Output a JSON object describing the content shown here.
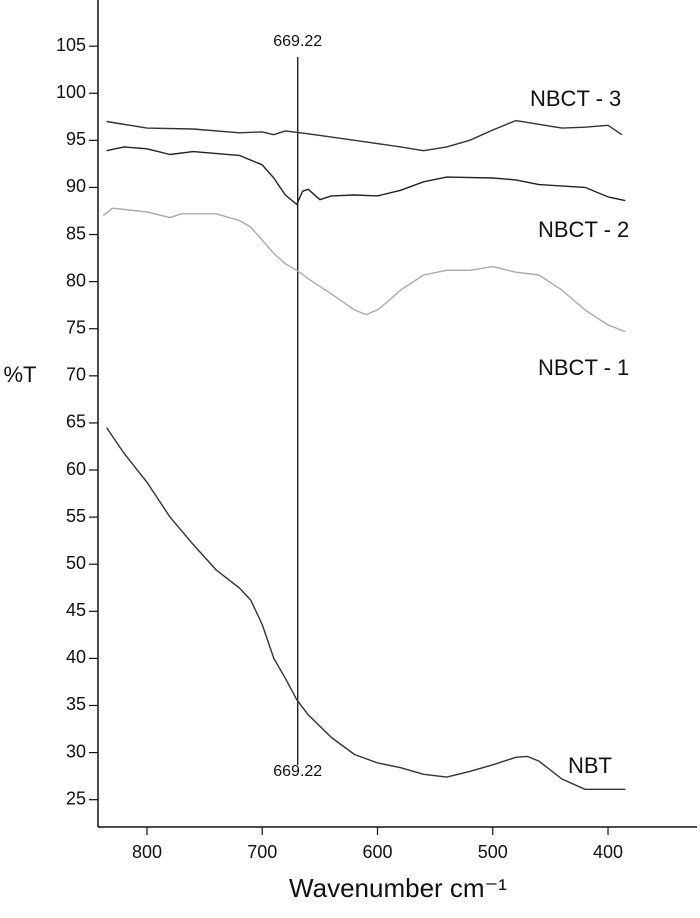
{
  "chart_data": {
    "type": "line",
    "y_label": "%T",
    "x_label": "Wavenumber cm⁻¹",
    "xlim": [
      842.5,
      322.8
    ],
    "xticks": [
      800,
      700,
      600,
      500,
      400
    ],
    "ylim": [
      22.1,
      109.9
    ],
    "yticks": [
      25,
      30,
      35,
      40,
      45,
      50,
      55,
      60,
      65,
      70,
      75,
      80,
      85,
      90,
      95,
      100,
      105
    ],
    "vline": 669.22,
    "series": [
      {
        "name": "NBCT - 3",
        "color": "#333333",
        "x": [
          835,
          800,
          760,
          720,
          700,
          690,
          680,
          660,
          620,
          580,
          560,
          540,
          520,
          500,
          480,
          460,
          440,
          420,
          400,
          388
        ],
        "values": [
          97.0,
          96.3,
          96.2,
          95.8,
          95.9,
          95.6,
          96.0,
          95.7,
          95.0,
          94.3,
          93.9,
          94.3,
          95.0,
          96.1,
          97.1,
          96.7,
          96.3,
          96.4,
          96.6,
          95.6
        ]
      },
      {
        "name": "NBCT - 2",
        "color": "#222222",
        "x": [
          835,
          820,
          800,
          780,
          760,
          720,
          700,
          690,
          680,
          670,
          665,
          660,
          650,
          640,
          620,
          600,
          580,
          560,
          540,
          500,
          480,
          460,
          420,
          400,
          385
        ],
        "values": [
          93.9,
          94.3,
          94.1,
          93.5,
          93.8,
          93.4,
          92.4,
          91.0,
          89.2,
          88.2,
          89.6,
          89.8,
          88.7,
          89.1,
          89.2,
          89.1,
          89.7,
          90.6,
          91.1,
          91.0,
          90.8,
          90.3,
          90.0,
          89.0,
          88.6
        ]
      },
      {
        "name": "NBCT - 1",
        "color": "#aaaaaa",
        "x": [
          838,
          830,
          800,
          780,
          770,
          740,
          720,
          710,
          700,
          690,
          680,
          670,
          660,
          640,
          620,
          610,
          600,
          590,
          580,
          560,
          540,
          520,
          500,
          480,
          460,
          440,
          420,
          400,
          385
        ],
        "values": [
          87.0,
          87.8,
          87.4,
          86.8,
          87.2,
          87.2,
          86.5,
          85.8,
          84.4,
          83.0,
          81.9,
          81.2,
          80.3,
          78.7,
          77.0,
          76.5,
          77.0,
          78.0,
          79.1,
          80.7,
          81.2,
          81.2,
          81.6,
          81.0,
          80.7,
          79.1,
          77.0,
          75.4,
          74.7
        ]
      },
      {
        "name": "NBT",
        "color": "#333333",
        "x": [
          835,
          820,
          800,
          780,
          760,
          740,
          720,
          710,
          700,
          690,
          680,
          670,
          660,
          640,
          620,
          600,
          580,
          560,
          540,
          520,
          500,
          480,
          470,
          460,
          440,
          420,
          400,
          385
        ],
        "values": [
          64.5,
          61.8,
          58.7,
          55.0,
          52.1,
          49.4,
          47.5,
          46.2,
          43.6,
          40.0,
          37.9,
          35.6,
          34.0,
          31.6,
          29.8,
          28.9,
          28.4,
          27.7,
          27.4,
          28.0,
          28.7,
          29.5,
          29.6,
          29.1,
          27.2,
          26.1,
          26.1,
          26.1
        ]
      }
    ]
  }
}
